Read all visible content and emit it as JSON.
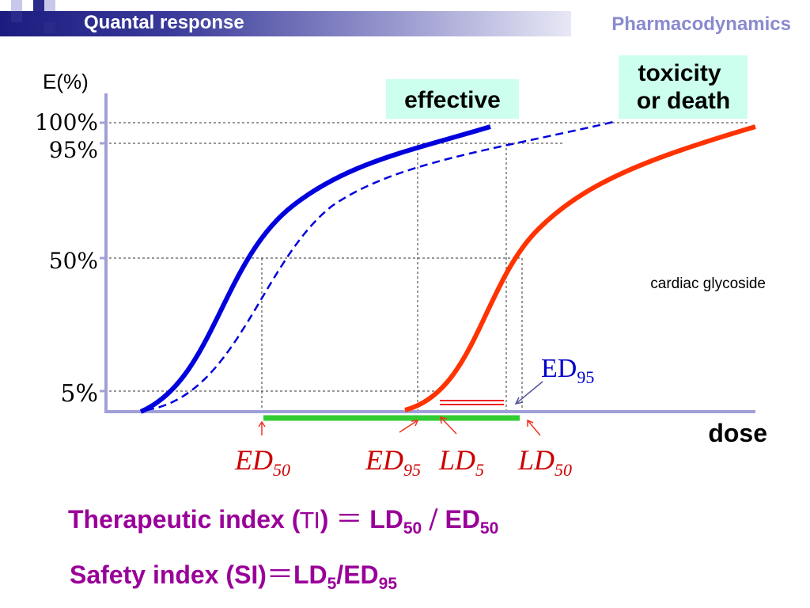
{
  "header": {
    "title": "Quantal response",
    "subject": "Pharmacodynamics"
  },
  "chart": {
    "y_axis_label": "E(%)",
    "x_axis_label": "dose",
    "y_ticks": [
      "100%",
      "95%",
      "50%",
      "5%"
    ],
    "box_effective": "effective",
    "box_toxicity_line1": "toxicity",
    "box_toxicity_line2": "or death",
    "drug_label": "cardiac glycoside",
    "annotation_ed": "ED",
    "annotation_sub": "95",
    "bottom_labels": [
      {
        "main": "ED",
        "sub": "50"
      },
      {
        "main": "ED",
        "sub": "95"
      },
      {
        "main": "LD",
        "sub": "5"
      },
      {
        "main": "LD",
        "sub": "50"
      }
    ],
    "colors": {
      "effective_curve": "#0000dd",
      "toxic_curve": "#ff3300",
      "safe_range": "#33cc33",
      "box_fill": "#ccffee",
      "formula_text": "#990099"
    }
  },
  "formulas": {
    "ti_label": "Therapeutic index (",
    "ti_abbr": "TI",
    "ti_close": ")",
    "ti_eq": "＝",
    "ti_num": "LD",
    "ti_num_sub": "50",
    "ti_div": "/",
    "ti_den": "ED",
    "ti_den_sub": "50",
    "si_label": "Safety index (SI)",
    "si_eq": "＝",
    "si_num": "LD",
    "si_num_sub": "5",
    "si_div": "/ED",
    "si_den_sub": "95"
  }
}
